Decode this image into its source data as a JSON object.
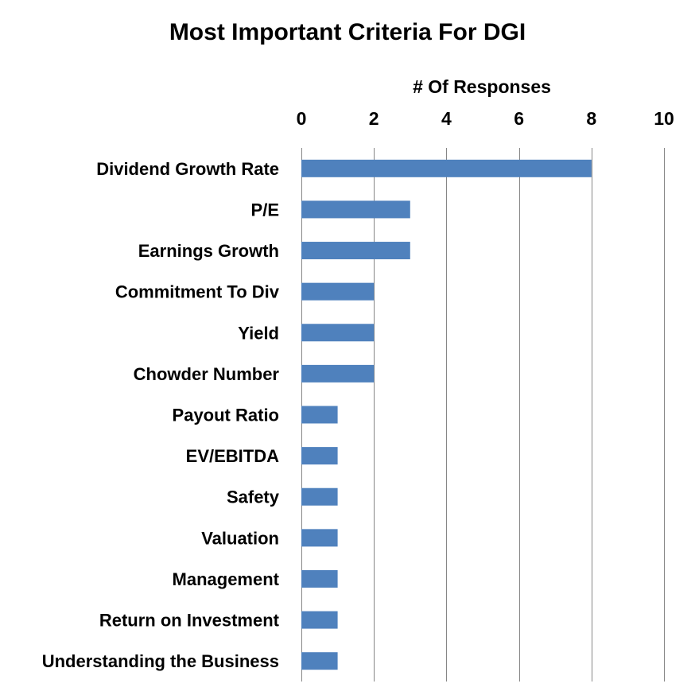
{
  "chart_data": {
    "type": "bar",
    "orientation": "horizontal",
    "title": "Most Important Criteria For DGI",
    "xlabel": "# Of Responses",
    "ylabel": "",
    "x_axis_position": "top",
    "xlim": [
      0,
      10
    ],
    "xticks": [
      "0",
      "2",
      "4",
      "6",
      "8",
      "10"
    ],
    "grid": true,
    "legend": "none",
    "categories": [
      "Dividend Growth Rate",
      "P/E",
      "Earnings Growth",
      "Commitment To Div",
      "Yield",
      "Chowder Number",
      "Payout Ratio",
      "EV/EBITDA",
      "Safety",
      "Valuation",
      "Management",
      "Return on Investment",
      "Understanding the Business"
    ],
    "values": [
      8,
      3,
      3,
      2,
      2,
      2,
      1,
      1,
      1,
      1,
      1,
      1,
      1
    ],
    "bar_color": "#4F81BD",
    "grid_color": "#868686"
  }
}
